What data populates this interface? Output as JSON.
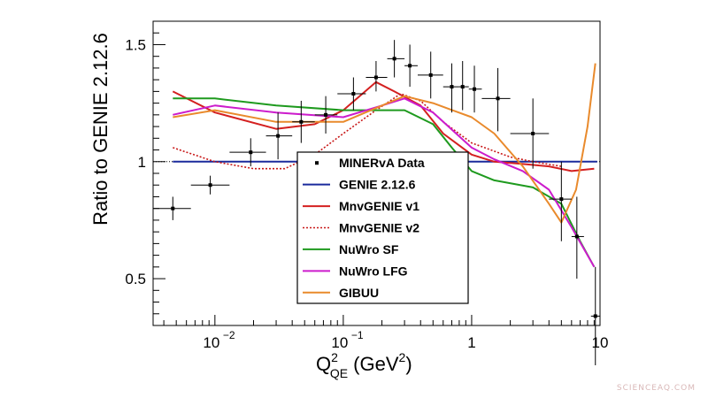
{
  "chart_data": {
    "type": "scatter",
    "title": "",
    "ylabel": "Ratio to GENIE 2.12.6",
    "xlabel": {
      "base": "Q",
      "sup": "2",
      "sub": "QE",
      "unit_base": "(GeV",
      "unit_sup": "2",
      "unit_close": ")"
    },
    "xscale": "log",
    "xlim": [
      0.0033,
      10.0
    ],
    "ylim": [
      0.3,
      1.6
    ],
    "x_ticks": [
      {
        "value": 0.01,
        "base": "10",
        "exp": "−2"
      },
      {
        "value": 0.1,
        "base": "10",
        "exp": "−1"
      },
      {
        "value": 1,
        "label": "1"
      },
      {
        "value": 10,
        "label": "10"
      }
    ],
    "y_ticks": [
      {
        "value": 0.5,
        "label": "0.5"
      },
      {
        "value": 1.0,
        "label": "1"
      },
      {
        "value": 1.5,
        "label": "1.5"
      }
    ],
    "legend_position": "center",
    "data_series": {
      "name": "MINERvA Data",
      "points": [
        {
          "x": 0.0047,
          "y": 0.8,
          "xlo": 0.0033,
          "xhi": 0.0065,
          "ylo": 0.75,
          "yhi": 0.85
        },
        {
          "x": 0.0092,
          "y": 0.9,
          "xlo": 0.0065,
          "xhi": 0.013,
          "ylo": 0.86,
          "yhi": 0.94
        },
        {
          "x": 0.019,
          "y": 1.04,
          "xlo": 0.013,
          "xhi": 0.025,
          "ylo": 0.98,
          "yhi": 1.1
        },
        {
          "x": 0.031,
          "y": 1.11,
          "xlo": 0.025,
          "xhi": 0.04,
          "ylo": 1.01,
          "yhi": 1.21
        },
        {
          "x": 0.047,
          "y": 1.17,
          "xlo": 0.04,
          "xhi": 0.06,
          "ylo": 1.08,
          "yhi": 1.26
        },
        {
          "x": 0.073,
          "y": 1.2,
          "xlo": 0.06,
          "xhi": 0.09,
          "ylo": 1.12,
          "yhi": 1.28
        },
        {
          "x": 0.12,
          "y": 1.29,
          "xlo": 0.09,
          "xhi": 0.15,
          "ylo": 1.22,
          "yhi": 1.36
        },
        {
          "x": 0.18,
          "y": 1.36,
          "xlo": 0.15,
          "xhi": 0.22,
          "ylo": 1.3,
          "yhi": 1.43
        },
        {
          "x": 0.25,
          "y": 1.44,
          "xlo": 0.22,
          "xhi": 0.3,
          "ylo": 1.36,
          "yhi": 1.52
        },
        {
          "x": 0.33,
          "y": 1.41,
          "xlo": 0.3,
          "xhi": 0.38,
          "ylo": 1.32,
          "yhi": 1.5
        },
        {
          "x": 0.48,
          "y": 1.37,
          "xlo": 0.38,
          "xhi": 0.6,
          "ylo": 1.27,
          "yhi": 1.47
        },
        {
          "x": 0.7,
          "y": 1.32,
          "xlo": 0.6,
          "xhi": 0.8,
          "ylo": 1.21,
          "yhi": 1.42
        },
        {
          "x": 0.85,
          "y": 1.32,
          "xlo": 0.8,
          "xhi": 0.95,
          "ylo": 1.22,
          "yhi": 1.43
        },
        {
          "x": 1.05,
          "y": 1.31,
          "xlo": 0.95,
          "xhi": 1.2,
          "ylo": 1.21,
          "yhi": 1.41
        },
        {
          "x": 1.6,
          "y": 1.27,
          "xlo": 1.2,
          "xhi": 2.0,
          "ylo": 1.13,
          "yhi": 1.4
        },
        {
          "x": 3.0,
          "y": 1.12,
          "xlo": 2.0,
          "xhi": 4.0,
          "ylo": 0.97,
          "yhi": 1.27
        },
        {
          "x": 5.0,
          "y": 0.84,
          "xlo": 4.0,
          "xhi": 6.0,
          "ylo": 0.66,
          "yhi": 1.0
        },
        {
          "x": 6.6,
          "y": 0.68,
          "xlo": 6.0,
          "xhi": 7.5,
          "ylo": 0.5,
          "yhi": 0.85
        },
        {
          "x": 9.2,
          "y": 0.34,
          "xlo": 8.5,
          "xhi": 10.0,
          "ylo": 0.13,
          "yhi": 0.55
        }
      ]
    },
    "series": [
      {
        "name": "GENIE 2.12.6",
        "color": "#1a2a9c",
        "dash": "solid",
        "x": [
          0.0047,
          9.5
        ],
        "y": [
          1.0,
          1.0
        ]
      },
      {
        "name": "MnvGENIE v1",
        "color": "#d42020",
        "dash": "solid",
        "x": [
          0.0047,
          0.01,
          0.03,
          0.06,
          0.1,
          0.18,
          0.25,
          0.4,
          0.6,
          1.0,
          1.5,
          2.5,
          4.0,
          6.0,
          9.0
        ],
        "y": [
          1.3,
          1.21,
          1.14,
          1.16,
          1.22,
          1.34,
          1.3,
          1.24,
          1.12,
          1.03,
          1.0,
          0.99,
          0.98,
          0.96,
          0.97
        ]
      },
      {
        "name": "MnvGENIE v2",
        "color": "#c81818",
        "dash": "dotted",
        "x": [
          0.0047,
          0.01,
          0.02,
          0.035,
          0.06,
          0.1,
          0.18,
          0.28,
          0.4,
          0.6,
          1.0,
          2.0,
          3.0,
          5.0
        ],
        "y": [
          1.06,
          1.0,
          0.97,
          0.97,
          1.03,
          1.12,
          1.22,
          1.29,
          1.26,
          1.17,
          1.08,
          1.02,
          1.0,
          0.98
        ]
      },
      {
        "name": "NuWro SF",
        "color": "#1e9a1e",
        "dash": "solid",
        "x": [
          0.0047,
          0.01,
          0.03,
          0.1,
          0.2,
          0.3,
          0.5,
          0.7,
          1.0,
          1.5,
          3.0,
          5.0,
          7.0,
          9.0
        ],
        "y": [
          1.27,
          1.27,
          1.24,
          1.22,
          1.22,
          1.22,
          1.16,
          1.06,
          0.96,
          0.92,
          0.89,
          0.82,
          0.66,
          0.55
        ]
      },
      {
        "name": "NuWro LFG",
        "color": "#cc1ccc",
        "dash": "solid",
        "x": [
          0.0047,
          0.01,
          0.03,
          0.1,
          0.2,
          0.3,
          0.5,
          1.0,
          1.5,
          2.5,
          4.0,
          6.0,
          9.0
        ],
        "y": [
          1.2,
          1.24,
          1.21,
          1.19,
          1.24,
          1.27,
          1.21,
          1.06,
          1.01,
          0.96,
          0.88,
          0.72,
          0.55
        ]
      },
      {
        "name": "GIBUU",
        "color": "#e98a2c",
        "dash": "solid",
        "x": [
          0.0047,
          0.01,
          0.03,
          0.1,
          0.2,
          0.3,
          0.5,
          1.0,
          1.5,
          2.5,
          4.0,
          5.0,
          6.5,
          8.0,
          9.2
        ],
        "y": [
          1.19,
          1.22,
          1.17,
          1.17,
          1.24,
          1.28,
          1.25,
          1.19,
          1.12,
          0.98,
          0.82,
          0.74,
          0.88,
          1.15,
          1.42
        ]
      }
    ]
  },
  "legend": {
    "items": [
      {
        "label": "MINERvA Data",
        "kind": "marker",
        "color": "#000000",
        "dash": "solid"
      },
      {
        "label": "GENIE 2.12.6",
        "kind": "line",
        "color": "#1a2a9c",
        "dash": "solid"
      },
      {
        "label": "MnvGENIE v1",
        "kind": "line",
        "color": "#d42020",
        "dash": "solid"
      },
      {
        "label": "MnvGENIE v2",
        "kind": "line",
        "color": "#c81818",
        "dash": "dotted"
      },
      {
        "label": "NuWro SF",
        "kind": "line",
        "color": "#1e9a1e",
        "dash": "solid"
      },
      {
        "label": "NuWro LFG",
        "kind": "line",
        "color": "#cc1ccc",
        "dash": "solid"
      },
      {
        "label": "GIBUU",
        "kind": "line",
        "color": "#e98a2c",
        "dash": "solid"
      }
    ]
  },
  "watermark": "SCIENCEAQ.COM"
}
